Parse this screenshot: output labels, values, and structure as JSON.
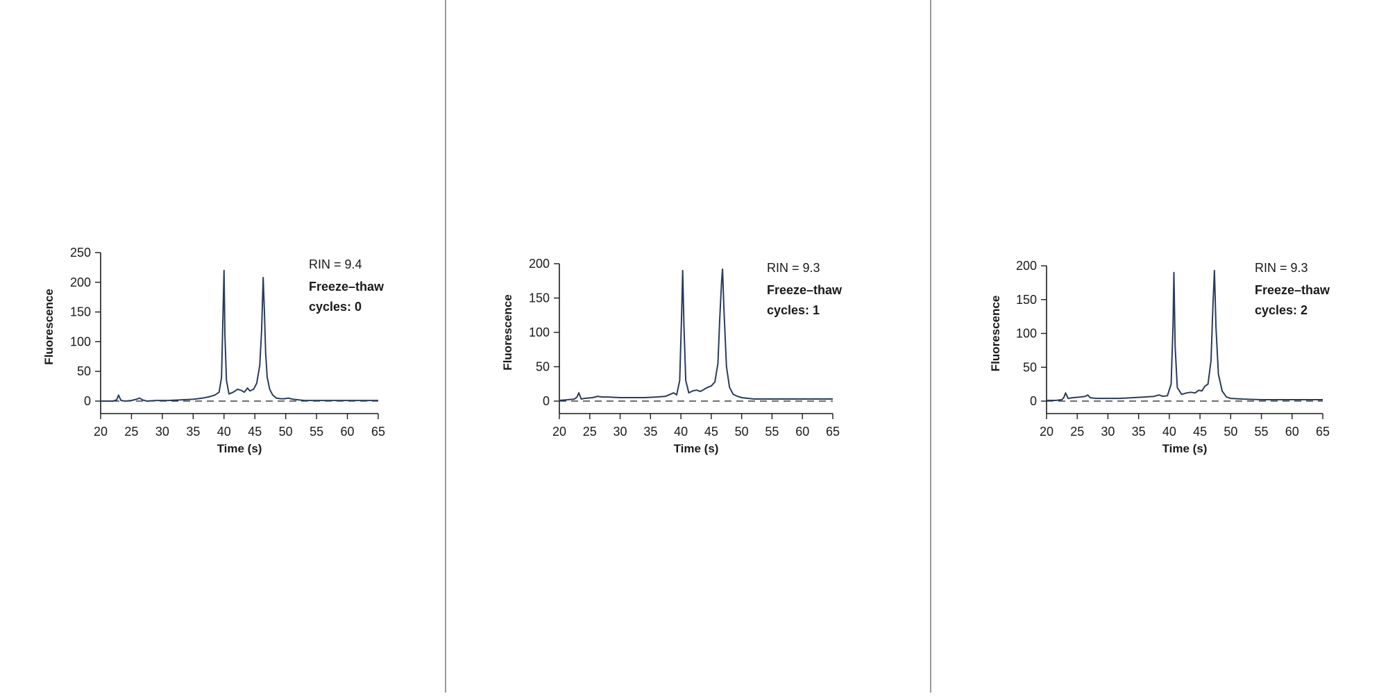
{
  "colors": {
    "line": "#2a3b5c",
    "axis": "#1a1a1a",
    "baseline": "#1a1a1a",
    "divider": "#9a9a9a"
  },
  "chart_data": [
    {
      "type": "line",
      "ylabel": "Fluorescence",
      "xlabel": "Time (s)",
      "xlim": [
        20,
        65
      ],
      "ylim": [
        0,
        250
      ],
      "xticks": [
        20,
        25,
        30,
        35,
        40,
        45,
        50,
        55,
        60,
        65
      ],
      "yticks": [
        0,
        50,
        100,
        150,
        200,
        250
      ],
      "annotations": [
        "RIN = 9.4",
        "Freeze–thaw",
        "cycles: 0"
      ],
      "series": [
        {
          "x": [
            20,
            21,
            22,
            22.6,
            22.9,
            23.3,
            24,
            25,
            25.8,
            26.3,
            26.8,
            27.5,
            29,
            31,
            33,
            35,
            36.5,
            37.5,
            38.5,
            39.2,
            39.6,
            39.85,
            40,
            40.15,
            40.4,
            40.8,
            41.5,
            42.2,
            42.8,
            43.3,
            43.8,
            44.2,
            44.8,
            45.3,
            45.8,
            46.1,
            46.35,
            46.55,
            46.75,
            47,
            47.4,
            47.9,
            48.5,
            49.2,
            49.8,
            50.4,
            51.2,
            53,
            56,
            60,
            65
          ],
          "y": [
            0,
            0,
            0,
            2,
            10,
            1,
            0,
            1,
            3,
            5,
            2,
            0,
            1,
            1,
            2,
            3,
            5,
            7,
            10,
            15,
            40,
            150,
            220,
            110,
            35,
            12,
            15,
            20,
            18,
            15,
            22,
            17,
            20,
            30,
            60,
            120,
            208,
            150,
            80,
            40,
            20,
            10,
            5,
            4,
            4,
            5,
            3,
            1,
            1,
            1,
            1
          ]
        }
      ]
    },
    {
      "type": "line",
      "ylabel": "Fluorescence",
      "xlabel": "Time (s)",
      "xlim": [
        20,
        65
      ],
      "ylim": [
        0,
        200
      ],
      "xticks": [
        20,
        25,
        30,
        35,
        40,
        45,
        50,
        55,
        60,
        65
      ],
      "yticks": [
        0,
        50,
        100,
        150,
        200
      ],
      "annotations": [
        "RIN = 9.3",
        "Freeze–thaw",
        "cycles: 1"
      ],
      "series": [
        {
          "x": [
            20,
            21.5,
            22.5,
            22.9,
            23.2,
            23.6,
            24.2,
            25.5,
            26.3,
            27,
            28,
            30,
            32,
            34,
            36,
            37.5,
            38.3,
            38.8,
            39.3,
            39.8,
            40.1,
            40.3,
            40.5,
            40.8,
            41.3,
            42,
            42.6,
            43.2,
            43.8,
            44.4,
            45,
            45.6,
            46.1,
            46.4,
            46.7,
            46.85,
            47.1,
            47.5,
            48,
            48.6,
            49.3,
            50,
            52,
            55,
            60,
            65
          ],
          "y": [
            1,
            2,
            3,
            6,
            12,
            3,
            4,
            5,
            7,
            6,
            6,
            5,
            5,
            5,
            6,
            7,
            10,
            12,
            9,
            30,
            120,
            190,
            110,
            30,
            12,
            15,
            16,
            14,
            17,
            20,
            22,
            28,
            55,
            120,
            175,
            192,
            130,
            50,
            20,
            10,
            7,
            5,
            3,
            3,
            3,
            3
          ]
        }
      ]
    },
    {
      "type": "line",
      "ylabel": "Fluorescence",
      "xlabel": "Time (s)",
      "xlim": [
        20,
        65
      ],
      "ylim": [
        0,
        200
      ],
      "xticks": [
        20,
        25,
        30,
        35,
        40,
        45,
        50,
        55,
        60,
        65
      ],
      "yticks": [
        0,
        50,
        100,
        150,
        200
      ],
      "annotations": [
        "RIN = 9.3",
        "Freeze–thaw",
        "cycles: 2"
      ],
      "series": [
        {
          "x": [
            20,
            21.5,
            22.5,
            22.8,
            23.1,
            23.5,
            24.3,
            25.5,
            26.3,
            26.7,
            27.1,
            28,
            30,
            32,
            34,
            36,
            37.5,
            38.3,
            39,
            39.7,
            40.3,
            40.6,
            40.75,
            40.95,
            41.3,
            42,
            42.8,
            43.5,
            44.2,
            44.8,
            45.3,
            45.8,
            46.3,
            46.8,
            47.1,
            47.35,
            47.6,
            48,
            48.6,
            49.3,
            50,
            52,
            55,
            60,
            65
          ],
          "y": [
            1,
            1,
            2,
            5,
            12,
            4,
            5,
            6,
            7,
            9,
            5,
            4,
            4,
            4,
            5,
            6,
            7,
            9,
            7,
            8,
            25,
            110,
            190,
            80,
            20,
            10,
            12,
            13,
            12,
            16,
            15,
            22,
            25,
            60,
            140,
            193,
            110,
            40,
            15,
            6,
            4,
            3,
            2,
            2,
            2
          ]
        }
      ]
    }
  ]
}
